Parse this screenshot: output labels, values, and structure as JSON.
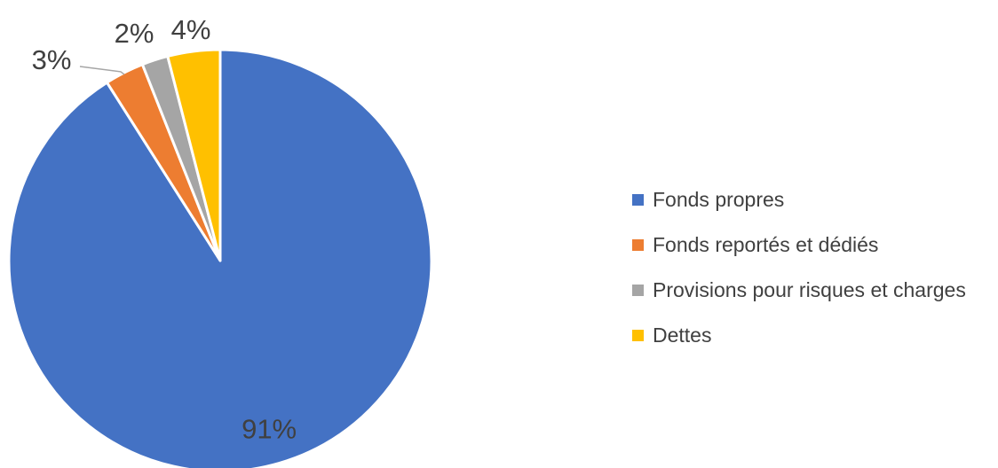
{
  "chart_data": {
    "type": "pie",
    "title": "",
    "slices": [
      {
        "label": "Fonds propres",
        "value": 91,
        "display": "91%",
        "color": "#4472C4"
      },
      {
        "label": "Fonds reportés et dédiés",
        "value": 3,
        "display": "3%",
        "color": "#ED7D31"
      },
      {
        "label": "Provisions pour risques et charges",
        "value": 2,
        "display": "2%",
        "color": "#A5A5A5"
      },
      {
        "label": "Dettes",
        "value": 4,
        "display": "4%",
        "color": "#FFC000"
      }
    ],
    "legend_position": "right",
    "start_angle": "12 o'clock",
    "direction": "clockwise"
  }
}
